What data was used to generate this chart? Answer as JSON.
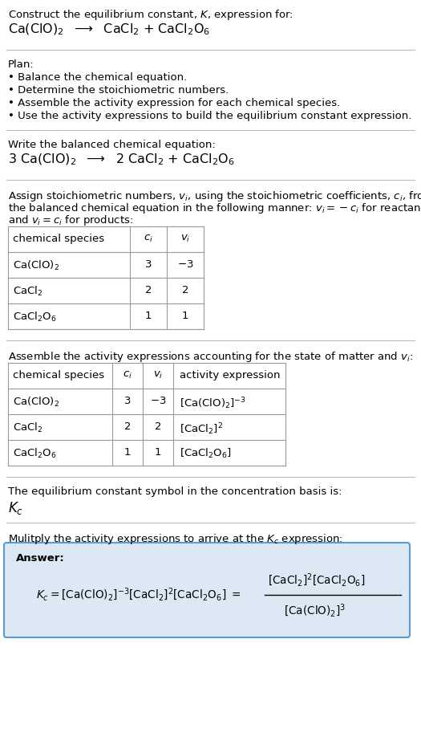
{
  "title_line1": "Construct the equilibrium constant, $K$, expression for:",
  "reaction_unbalanced": "Ca(ClO)$_2$  $\\longrightarrow$  CaCl$_2$ + CaCl$_2$O$_6$",
  "plan_header": "Plan:",
  "plan_items": [
    "• Balance the chemical equation.",
    "• Determine the stoichiometric numbers.",
    "• Assemble the activity expression for each chemical species.",
    "• Use the activity expressions to build the equilibrium constant expression."
  ],
  "balanced_header": "Write the balanced chemical equation:",
  "balanced_eq": "3 Ca(ClO)$_2$  $\\longrightarrow$  2 CaCl$_2$ + CaCl$_2$O$_6$",
  "assign_text1": "Assign stoichiometric numbers, $v_i$, using the stoichiometric coefficients, $c_i$, from",
  "assign_text2": "the balanced chemical equation in the following manner: $v_i = -c_i$ for reactants",
  "assign_text3": "and $v_i = c_i$ for products:",
  "table1_headers": [
    "chemical species",
    "$c_i$",
    "$v_i$"
  ],
  "table1_rows": [
    [
      "Ca(ClO)$_2$",
      "3",
      "$-3$"
    ],
    [
      "CaCl$_2$",
      "2",
      "2"
    ],
    [
      "CaCl$_2$O$_6$",
      "1",
      "1"
    ]
  ],
  "assemble_header": "Assemble the activity expressions accounting for the state of matter and $v_i$:",
  "table2_headers": [
    "chemical species",
    "$c_i$",
    "$v_i$",
    "activity expression"
  ],
  "table2_rows": [
    [
      "Ca(ClO)$_2$",
      "3",
      "$-3$",
      "[Ca(ClO)$_2$]$^{-3}$"
    ],
    [
      "CaCl$_2$",
      "2",
      "2",
      "[CaCl$_2$]$^2$"
    ],
    [
      "CaCl$_2$O$_6$",
      "1",
      "1",
      "[CaCl$_2$O$_6$]"
    ]
  ],
  "keq_text1": "The equilibrium constant symbol in the concentration basis is:",
  "keq_symbol": "$K_c$",
  "multiply_text": "Mulitply the activity expressions to arrive at the $K_c$ expression:",
  "answer_box_color": "#dce9f5",
  "answer_border_color": "#5b9bd5",
  "bg_color": "#ffffff",
  "text_color": "#000000",
  "table_border_color": "#999999",
  "separator_color": "#bbbbbb"
}
